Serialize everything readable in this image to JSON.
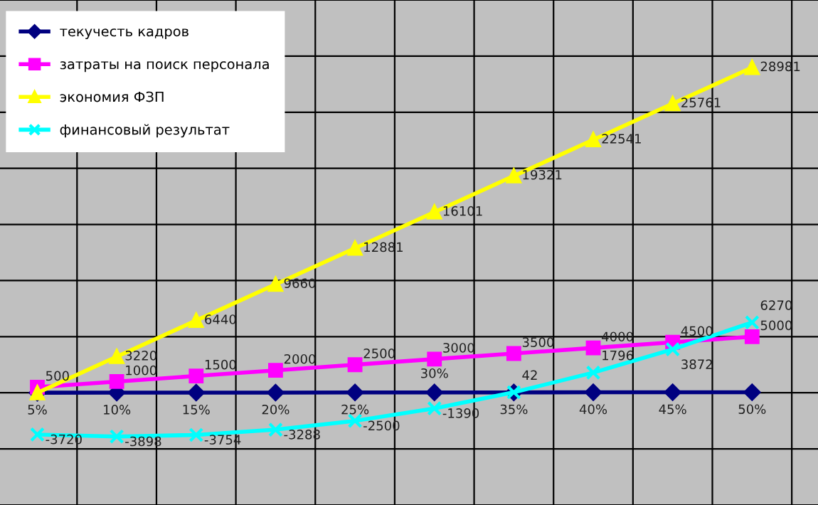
{
  "chart_data": {
    "type": "line",
    "categories": [
      null,
      null,
      null,
      null,
      null,
      null,
      null,
      null,
      null,
      null
    ],
    "series": [
      {
        "name": "текучесть кадров",
        "color": "#000080",
        "marker": "diamond",
        "values": [
          5,
          10,
          15,
          20,
          25,
          30,
          35,
          40,
          45,
          50
        ],
        "value_labels": [
          "5%",
          "10%",
          "15%",
          "20%",
          "25%",
          "30%",
          "35%",
          "40%",
          "45%",
          "50%"
        ]
      },
      {
        "name": "затраты на поиск персонала",
        "color": "#ff00ff",
        "marker": "square",
        "values": [
          500,
          1000,
          1500,
          2000,
          2500,
          3000,
          3500,
          4000,
          4500,
          5000
        ],
        "value_labels": [
          "500",
          "1000",
          "1500",
          "2000",
          "2500",
          "3000",
          "3500",
          "4000",
          "4500",
          "5000"
        ]
      },
      {
        "name": "экономия ФЗП",
        "color": "#ffff00",
        "marker": "triangle",
        "values": [
          0,
          3220,
          6440,
          9660,
          12881,
          16101,
          19321,
          22541,
          25761,
          28981
        ],
        "value_labels": [
          null,
          "3220",
          "6440",
          "9660",
          "12881",
          "16101",
          "19321",
          "22541",
          "25761",
          "28981"
        ]
      },
      {
        "name": "финансовый результат",
        "color": "#00ffff",
        "marker": "cross",
        "values": [
          -3720,
          -3898,
          -3754,
          -3288,
          -2500,
          -1390,
          42,
          1796,
          3872,
          6270
        ],
        "value_labels": [
          "-3720",
          "-3898",
          "-3754",
          "-3288",
          "-2500",
          "-1390",
          "42",
          "1796",
          "3872",
          "6270"
        ]
      }
    ],
    "ylim": [
      -10000,
      35000
    ],
    "yticks": [
      -10000,
      -5000,
      0,
      5000,
      10000,
      15000,
      20000,
      25000,
      30000,
      35000
    ],
    "tick_labels": false,
    "grid": true,
    "legend": "top left"
  }
}
